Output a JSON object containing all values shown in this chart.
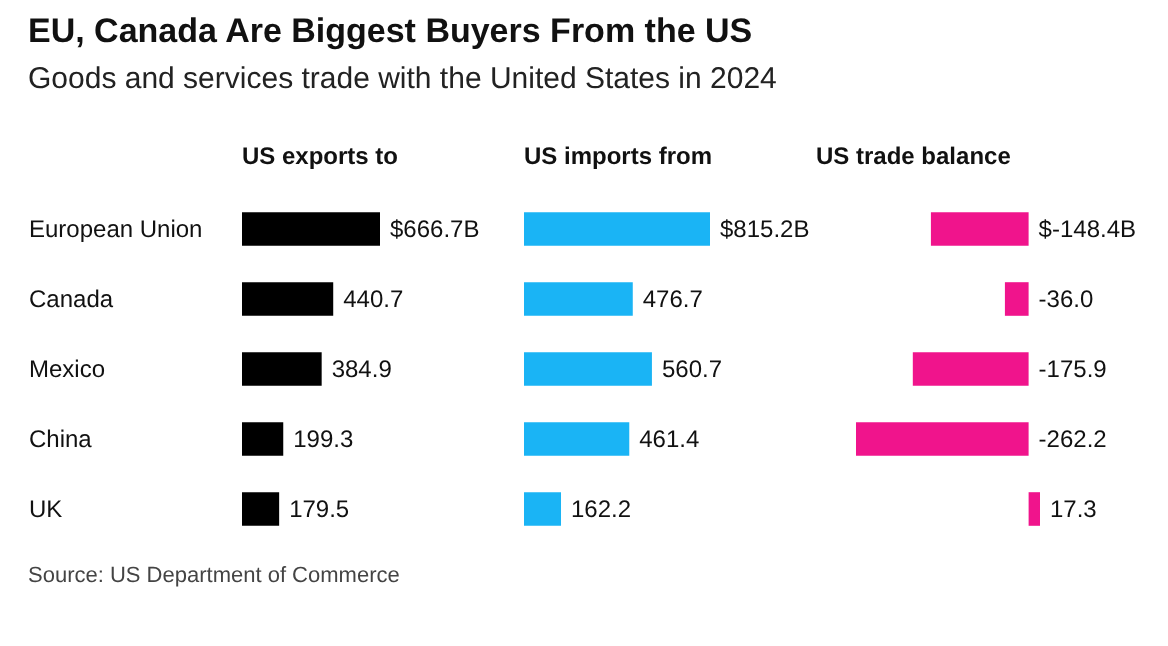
{
  "chart_data": [
    {
      "type": "other",
      "title": "EU, Canada Are Biggest Buyers From the US",
      "subtitle": "Goods and services trade with the United States in 2024"
    },
    {
      "type": "bar",
      "orientation": "horizontal",
      "title": "US exports to",
      "categories": [
        "European Union",
        "Canada",
        "Mexico",
        "China",
        "UK"
      ],
      "values": [
        666.7,
        440.7,
        384.9,
        199.3,
        179.5
      ],
      "value_labels": [
        "$666.7B",
        "440.7",
        "384.9",
        "199.3",
        "179.5"
      ],
      "color": "#000000",
      "tick_labels": "y",
      "annotations": [
        "Source: US Department of Commerce"
      ]
    },
    {
      "type": "bar",
      "orientation": "horizontal",
      "title": "US imports from",
      "values": [
        815.2,
        476.7,
        560.7,
        461.4,
        162.2
      ],
      "value_labels": [
        "$815.2B",
        "476.7",
        "560.7",
        "461.4",
        "162.2"
      ],
      "color": "#1ab4f5",
      "tick_labels": false
    },
    {
      "type": "bar",
      "orientation": "horizontal",
      "title": "US trade balance",
      "values": [
        -148.4,
        -36.0,
        -175.9,
        -262.2,
        17.3
      ],
      "value_labels": [
        "$-148.4B",
        "-36.0",
        "-175.9",
        "-262.2",
        "17.3"
      ],
      "color": "#f0148c",
      "tick_labels": false
    }
  ]
}
